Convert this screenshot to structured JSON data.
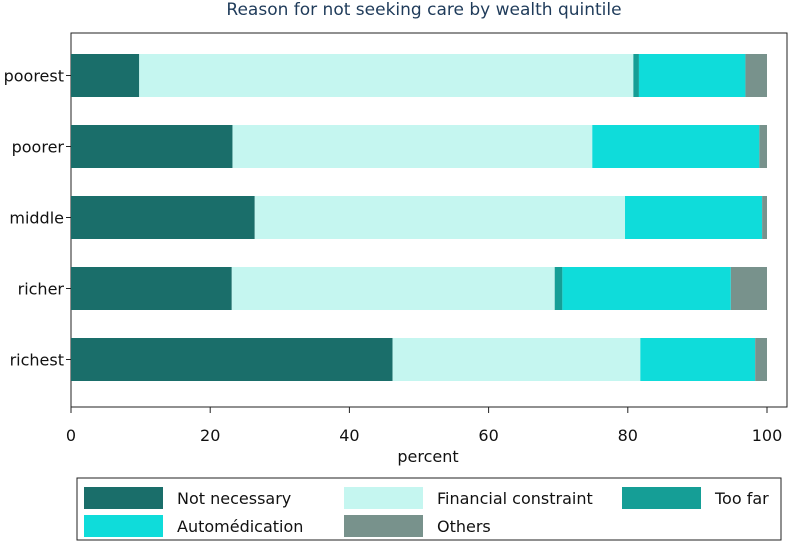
{
  "chart_data": {
    "type": "bar",
    "orientation": "horizontal",
    "stacked": true,
    "title": "Reason for not seeking care by wealth quintile",
    "xlabel": "percent",
    "xlim": [
      0,
      100
    ],
    "xticks": [
      "0",
      "20",
      "40",
      "60",
      "80",
      "100"
    ],
    "categories": [
      "poorest",
      "poorer",
      "middle",
      "richer",
      "richest"
    ],
    "series": [
      {
        "name": "Not necessary",
        "color": "#1a6e6a",
        "values": [
          9.8,
          23.2,
          26.4,
          23.1,
          46.2
        ]
      },
      {
        "name": "Financial constraint",
        "color": "#c5f6f0",
        "values": [
          71.0,
          51.7,
          53.2,
          46.4,
          35.6
        ]
      },
      {
        "name": "Too far",
        "color": "#159e96",
        "values": [
          0.8,
          0.0,
          0.0,
          1.1,
          0.0
        ]
      },
      {
        "name": "Automédication",
        "color": "#0fdcda",
        "values": [
          15.3,
          24.0,
          19.7,
          24.2,
          16.5
        ]
      },
      {
        "name": "Others",
        "color": "#78928c",
        "values": [
          3.1,
          1.1,
          0.7,
          5.2,
          1.7
        ]
      }
    ],
    "grid": false,
    "legend_position": "bottom"
  }
}
